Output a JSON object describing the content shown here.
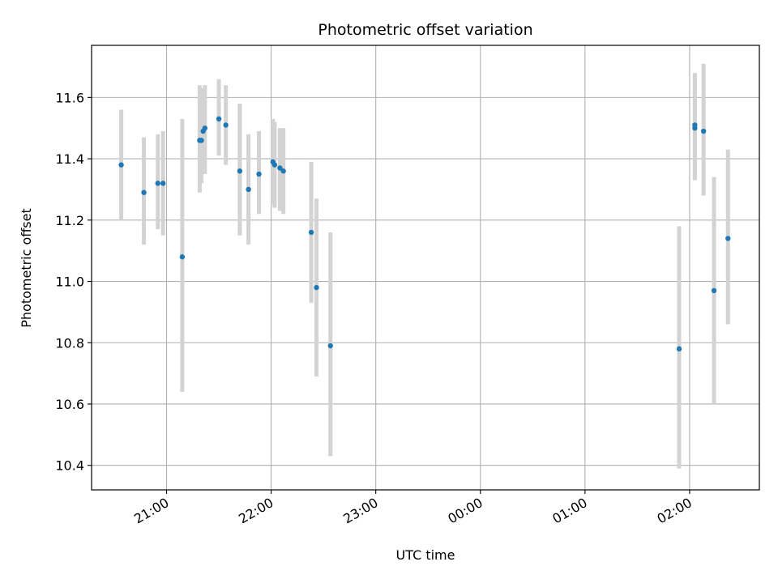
{
  "chart_data": {
    "type": "scatter",
    "title": "Photometric offset variation",
    "xlabel": "UTC time",
    "ylabel": "Photometric offset",
    "x_scale": "time",
    "xlim": [
      "20:17",
      "02:40"
    ],
    "ylim": [
      10.32,
      11.77
    ],
    "grid": true,
    "legend": "none",
    "x_ticks": [
      "21:00",
      "22:00",
      "23:00",
      "00:00",
      "01:00",
      "02:00"
    ],
    "y_ticks": [
      "10.4",
      "10.6",
      "10.8",
      "11.0",
      "11.2",
      "11.4",
      "11.6"
    ],
    "colors": {
      "point": "#1f77b4",
      "errorbar": "#d3d3d3",
      "grid": "#b0b0b0"
    },
    "series": [
      {
        "points": [
          {
            "x": "20:34",
            "y": 11.38,
            "lo": 11.2,
            "hi": 11.56
          },
          {
            "x": "20:47",
            "y": 11.29,
            "lo": 11.12,
            "hi": 11.47
          },
          {
            "x": "20:55",
            "y": 11.32,
            "lo": 11.17,
            "hi": 11.48
          },
          {
            "x": "20:58",
            "y": 11.32,
            "lo": 11.15,
            "hi": 11.49
          },
          {
            "x": "21:09",
            "y": 11.08,
            "lo": 10.64,
            "hi": 11.53
          },
          {
            "x": "21:19",
            "y": 11.46,
            "lo": 11.29,
            "hi": 11.64
          },
          {
            "x": "21:20",
            "y": 11.46,
            "lo": 11.32,
            "hi": 11.62
          },
          {
            "x": "21:21",
            "y": 11.49,
            "lo": 11.35,
            "hi": 11.63
          },
          {
            "x": "21:22",
            "y": 11.5,
            "lo": 11.35,
            "hi": 11.64
          },
          {
            "x": "21:30",
            "y": 11.53,
            "lo": 11.41,
            "hi": 11.66
          },
          {
            "x": "21:34",
            "y": 11.51,
            "lo": 11.38,
            "hi": 11.64
          },
          {
            "x": "21:42",
            "y": 11.36,
            "lo": 11.15,
            "hi": 11.58
          },
          {
            "x": "21:47",
            "y": 11.3,
            "lo": 11.12,
            "hi": 11.48
          },
          {
            "x": "21:53",
            "y": 11.35,
            "lo": 11.22,
            "hi": 11.49
          },
          {
            "x": "22:01",
            "y": 11.39,
            "lo": 11.25,
            "hi": 11.53
          },
          {
            "x": "22:02",
            "y": 11.38,
            "lo": 11.24,
            "hi": 11.52
          },
          {
            "x": "22:05",
            "y": 11.37,
            "lo": 11.23,
            "hi": 11.5
          },
          {
            "x": "22:07",
            "y": 11.36,
            "lo": 11.22,
            "hi": 11.5
          },
          {
            "x": "22:23",
            "y": 11.16,
            "lo": 10.93,
            "hi": 11.39
          },
          {
            "x": "22:26",
            "y": 10.98,
            "lo": 10.69,
            "hi": 11.27
          },
          {
            "x": "22:34",
            "y": 10.79,
            "lo": 10.43,
            "hi": 11.16
          },
          {
            "x": "01:54",
            "y": 10.78,
            "lo": 10.39,
            "hi": 11.18
          },
          {
            "x": "02:03",
            "y": 11.5,
            "lo": 11.33,
            "hi": 11.68
          },
          {
            "x": "02:03",
            "y": 11.51,
            "lo": 11.34,
            "hi": 11.67
          },
          {
            "x": "02:08",
            "y": 11.49,
            "lo": 11.28,
            "hi": 11.71
          },
          {
            "x": "02:14",
            "y": 10.97,
            "lo": 10.6,
            "hi": 11.34
          },
          {
            "x": "02:22",
            "y": 11.14,
            "lo": 10.86,
            "hi": 11.43
          }
        ]
      }
    ]
  }
}
